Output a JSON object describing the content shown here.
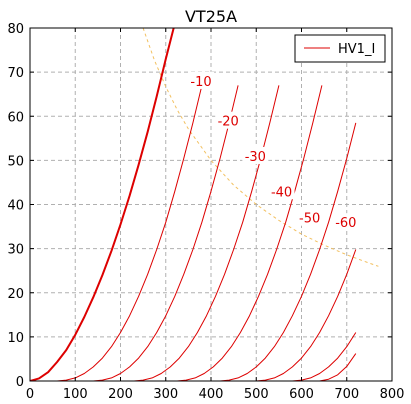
{
  "chart_data": {
    "type": "line",
    "title": "VT25A",
    "xlabel": "",
    "ylabel": "",
    "xlim": [
      0,
      800
    ],
    "ylim": [
      0,
      80
    ],
    "x_ticks": [
      0,
      100,
      200,
      300,
      400,
      500,
      600,
      700,
      800
    ],
    "y_ticks": [
      0,
      10,
      20,
      30,
      40,
      50,
      60,
      70,
      80
    ],
    "grid": true,
    "legend": {
      "entries": [
        "HV1_I"
      ],
      "placement": "top-right"
    },
    "colors": {
      "curve": "#dd0000",
      "load_line": "#f2c060",
      "grid": "#b0b0b0"
    },
    "series": [
      {
        "grid_voltage": 0,
        "bold": true,
        "x": [
          0,
          20,
          40,
          60,
          80,
          100,
          120,
          140,
          160,
          180,
          200,
          220,
          240,
          260,
          280,
          300,
          320
        ],
        "y": [
          0,
          0.6,
          2,
          4.3,
          7,
          10.5,
          14.5,
          19,
          24,
          29.5,
          35.5,
          42,
          49,
          56.5,
          64.5,
          73,
          81
        ]
      },
      {
        "grid_voltage": -10,
        "label": "-10",
        "x": [
          60,
          80,
          100,
          120,
          140,
          160,
          180,
          200,
          220,
          240,
          260,
          280,
          300,
          320,
          340,
          360,
          380
        ],
        "y": [
          0,
          0.2,
          0.7,
          1.7,
          3.2,
          5.2,
          7.8,
          11,
          14.8,
          19.2,
          24.2,
          29.8,
          36,
          43,
          50.5,
          58.5,
          67
        ]
      },
      {
        "grid_voltage": -20,
        "label": "-20",
        "x": [
          140,
          160,
          180,
          200,
          220,
          240,
          260,
          280,
          300,
          320,
          340,
          360,
          380,
          400,
          420,
          440,
          460
        ],
        "y": [
          0,
          0.2,
          0.7,
          1.7,
          3.2,
          5.2,
          7.8,
          11,
          14.8,
          19.2,
          24.2,
          29.8,
          36,
          43,
          50.5,
          58.5,
          67
        ]
      },
      {
        "grid_voltage": -30,
        "label": "-30",
        "x": [
          230,
          250,
          270,
          290,
          310,
          330,
          350,
          370,
          390,
          410,
          430,
          450,
          470,
          490,
          510,
          530,
          550
        ],
        "y": [
          0,
          0.2,
          0.7,
          1.7,
          3.2,
          5.2,
          7.8,
          11,
          14.8,
          19.2,
          24.2,
          29.8,
          36,
          43,
          50.5,
          58.5,
          67
        ]
      },
      {
        "grid_voltage": -40,
        "label": "-40",
        "x": [
          325,
          345,
          365,
          385,
          405,
          425,
          445,
          465,
          485,
          505,
          525,
          545,
          565,
          585,
          605,
          625,
          645
        ],
        "y": [
          0,
          0.2,
          0.7,
          1.7,
          3.2,
          5.2,
          7.8,
          11,
          14.8,
          19.2,
          24.2,
          29.8,
          36,
          43,
          50.5,
          58.5,
          67
        ]
      },
      {
        "grid_voltage": -50,
        "label": "-50",
        "x": [
          420,
          440,
          460,
          480,
          500,
          520,
          540,
          560,
          580,
          600,
          620,
          640,
          660,
          680,
          700,
          720
        ],
        "y": [
          0,
          0.2,
          0.7,
          1.7,
          3.2,
          5.2,
          7.8,
          11,
          14.8,
          19.2,
          24.2,
          29.8,
          36,
          43,
          50.5,
          58.5
        ]
      },
      {
        "grid_voltage": -60,
        "label": "-60",
        "x": [
          500,
          520,
          540,
          560,
          580,
          600,
          620,
          640,
          660,
          680,
          700,
          720
        ],
        "y": [
          0,
          0.2,
          0.7,
          1.7,
          3.2,
          5.2,
          7.8,
          11,
          14.8,
          19.2,
          24.2,
          29.8
        ]
      },
      {
        "grid_voltage": -70,
        "x": [
          580,
          600,
          620,
          640,
          660,
          680,
          700,
          720
        ],
        "y": [
          0,
          0.2,
          0.7,
          1.7,
          3.2,
          5.2,
          7.8,
          11
        ]
      },
      {
        "grid_voltage": -80,
        "x": [
          640,
          660,
          680,
          700,
          720
        ],
        "y": [
          0,
          0.4,
          1.4,
          3.3,
          6.2
        ]
      }
    ],
    "load_line": {
      "style": "dashed",
      "x": [
        250,
        275,
        300,
        325,
        350,
        400,
        450,
        500,
        550,
        600,
        650,
        700,
        750,
        770
      ],
      "y": [
        80,
        72.7,
        66.7,
        61.5,
        57.1,
        50,
        44.4,
        40,
        36.4,
        33.3,
        30.8,
        28.6,
        26.7,
        26
      ]
    },
    "curve_labels": [
      {
        "text": "-10",
        "x": 378,
        "y": 68
      },
      {
        "text": "-20",
        "x": 438,
        "y": 59
      },
      {
        "text": "-30",
        "x": 498,
        "y": 51
      },
      {
        "text": "-40",
        "x": 556,
        "y": 43
      },
      {
        "text": "-50",
        "x": 618,
        "y": 37
      },
      {
        "text": "-60",
        "x": 698,
        "y": 36
      }
    ]
  }
}
